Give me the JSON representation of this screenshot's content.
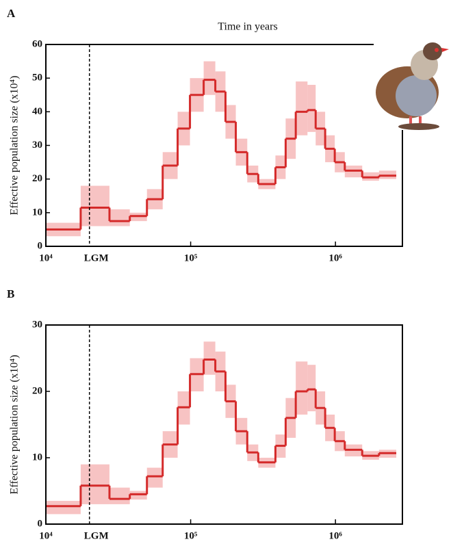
{
  "chart_data": [
    {
      "type": "step",
      "panel_label": "A",
      "title": "Time in years",
      "y_label": "Effective population size (x10⁴)",
      "xscale": "log",
      "xlim": [
        10000,
        2900000
      ],
      "xticks": [
        {
          "value": 10000,
          "label": "10⁴"
        },
        {
          "value": 100000,
          "label": "10⁵"
        },
        {
          "value": 1000000,
          "label": "10⁶"
        }
      ],
      "ylim": [
        0,
        60
      ],
      "yticks": [
        0,
        10,
        20,
        30,
        40,
        50,
        60
      ],
      "annotations": [
        {
          "text": "LGM",
          "x": 20000
        }
      ],
      "x": [
        10000,
        17400,
        27500,
        38000,
        49900,
        64100,
        81300,
        98900,
        123000,
        148000,
        174000,
        205000,
        246000,
        293000,
        385000,
        453000,
        532000,
        641000,
        730000,
        849000,
        989000,
        1160000,
        1530000,
        2000000,
        2630000
      ],
      "series": [
        {
          "color": "#d42a2a",
          "values": [
            5,
            11.5,
            7.5,
            9,
            14,
            24,
            35,
            45,
            49.5,
            46,
            37,
            28,
            21.5,
            18.5,
            23.5,
            32,
            40,
            40.5,
            35,
            29,
            25,
            22.5,
            20.5,
            21,
            21
          ]
        }
      ],
      "band": {
        "color": "#f6b9b9",
        "low": [
          3,
          6,
          6,
          7.5,
          11,
          20,
          30,
          40,
          45,
          40,
          32,
          24,
          19,
          17,
          20,
          26,
          33,
          34,
          30,
          25,
          22,
          20.5,
          19.5,
          20,
          20
        ],
        "high": [
          7,
          18,
          11,
          10,
          17,
          28,
          40,
          50,
          55,
          52,
          42,
          32,
          24,
          20,
          27,
          38,
          49,
          48,
          40,
          33,
          28,
          24,
          22,
          22.5,
          22.5
        ]
      }
    },
    {
      "type": "step",
      "panel_label": "B",
      "y_label": "Effective population size (x10⁴)",
      "xscale": "log",
      "xlim": [
        10000,
        2900000
      ],
      "xticks": [
        {
          "value": 10000,
          "label": "10⁴"
        },
        {
          "value": 100000,
          "label": "10⁵"
        },
        {
          "value": 1000000,
          "label": "10⁶"
        }
      ],
      "ylim": [
        0,
        30
      ],
      "yticks": [
        0,
        10,
        20,
        30
      ],
      "annotations": [
        {
          "text": "LGM",
          "x": 20000
        }
      ],
      "x": [
        10000,
        17400,
        27500,
        38000,
        49900,
        64100,
        81300,
        98900,
        123000,
        148000,
        174000,
        205000,
        246000,
        293000,
        385000,
        453000,
        532000,
        641000,
        730000,
        849000,
        989000,
        1160000,
        1530000,
        2000000,
        2630000
      ],
      "series": [
        {
          "color": "#d42a2a",
          "values": [
            2.7,
            5.8,
            3.8,
            4.5,
            7.2,
            12,
            17.6,
            22.6,
            24.8,
            23,
            18.5,
            14,
            10.8,
            9.3,
            11.8,
            16,
            20,
            20.3,
            17.5,
            14.5,
            12.5,
            11.2,
            10.3,
            10.7,
            10.7
          ]
        }
      ],
      "band": {
        "color": "#f6b9b9",
        "low": [
          1.5,
          3,
          3,
          3.7,
          5.5,
          10,
          15,
          20,
          22.5,
          20,
          16,
          12,
          9.5,
          8.5,
          10,
          13,
          16.5,
          17,
          15,
          12.5,
          11,
          10.2,
          9.7,
          10,
          10
        ],
        "high": [
          3.5,
          9,
          5.5,
          5,
          8.5,
          14,
          20,
          25,
          27.5,
          26,
          21,
          16,
          12,
          10,
          13.5,
          19,
          24.5,
          24,
          20,
          16.5,
          14,
          12,
          11,
          11.2,
          11.2
        ]
      }
    }
  ]
}
